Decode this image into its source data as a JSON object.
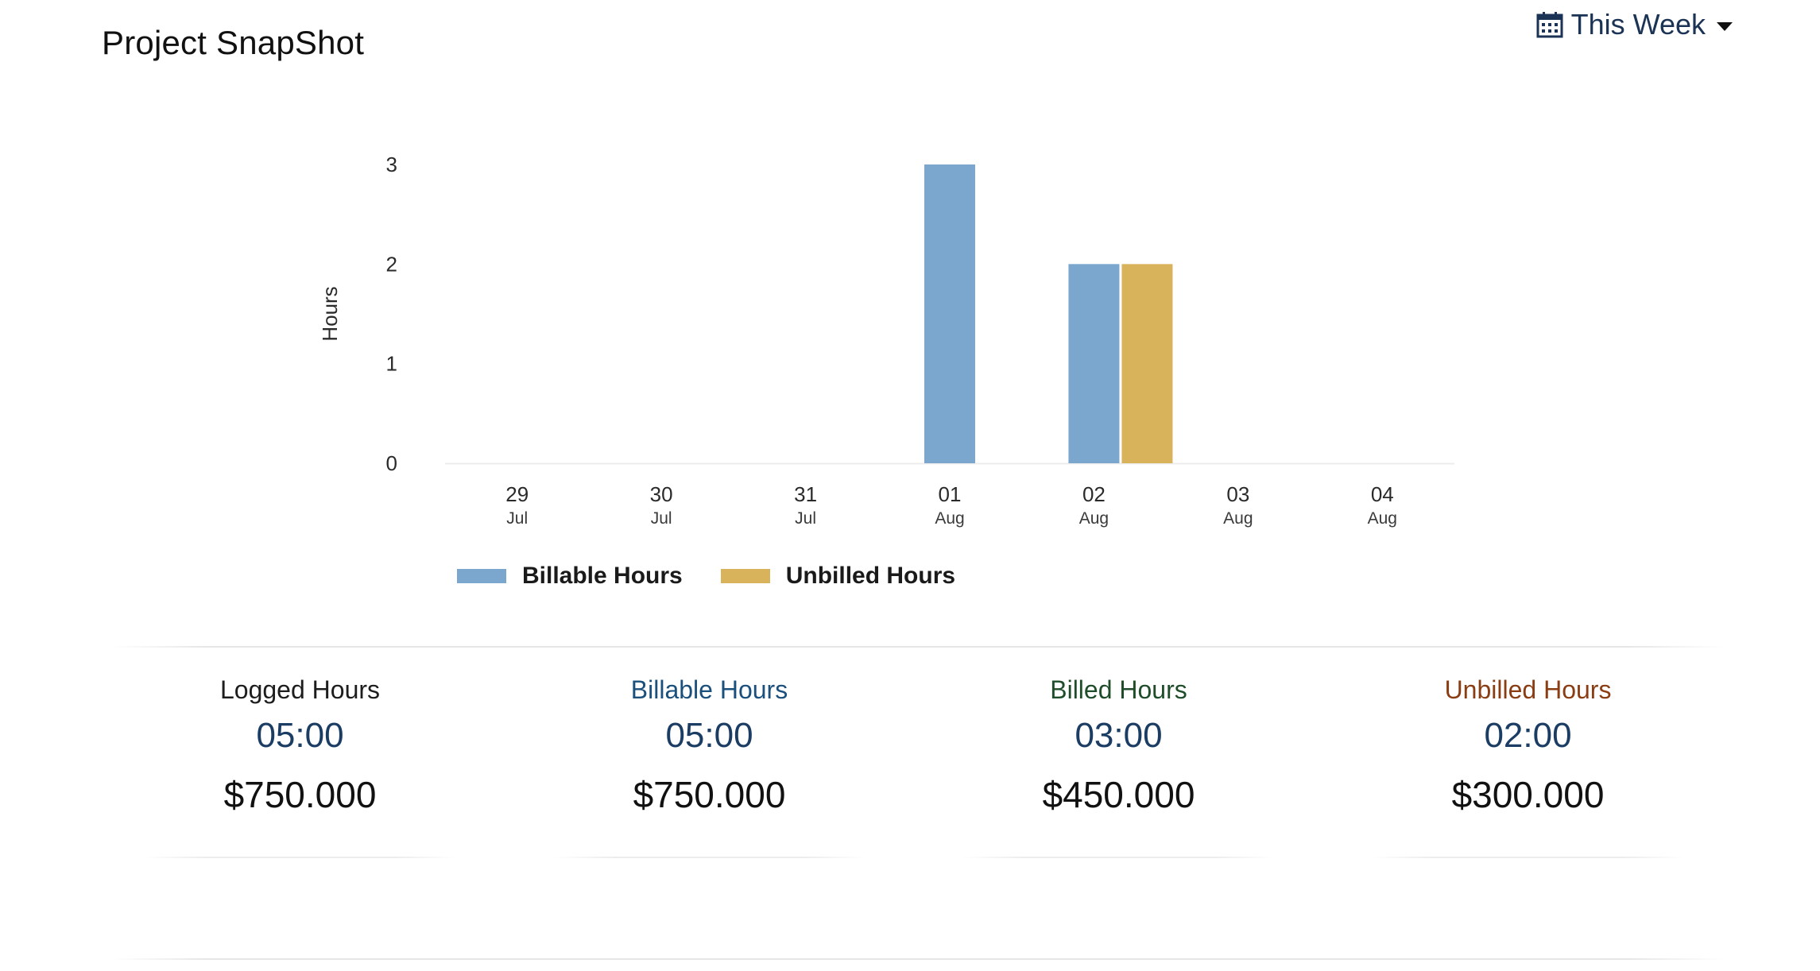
{
  "header": {
    "title": "Project SnapShot",
    "period_label": "This Week"
  },
  "colors": {
    "billable": "#7ba7cf",
    "unbilled": "#d9b35c",
    "billable_text": "#1b4f7c",
    "billed_text": "#1f4d2a",
    "unbilled_text": "#8a3d12"
  },
  "chart_data": {
    "type": "bar",
    "categories": [
      {
        "day": "29",
        "month": "Jul"
      },
      {
        "day": "30",
        "month": "Jul"
      },
      {
        "day": "31",
        "month": "Jul"
      },
      {
        "day": "01",
        "month": "Aug"
      },
      {
        "day": "02",
        "month": "Aug"
      },
      {
        "day": "03",
        "month": "Aug"
      },
      {
        "day": "04",
        "month": "Aug"
      }
    ],
    "series": [
      {
        "name": "Billable Hours",
        "values": [
          0,
          0,
          0,
          3,
          2,
          0,
          0
        ]
      },
      {
        "name": "Unbilled Hours",
        "values": [
          0,
          0,
          0,
          0,
          2,
          0,
          0
        ]
      }
    ],
    "ylabel": "Hours",
    "ylim": [
      0,
      3
    ],
    "yticks": [
      "0",
      "1",
      "2",
      "3"
    ],
    "grid": false,
    "legend_position": "bottom-left"
  },
  "stats": [
    {
      "label": "Logged Hours",
      "time": "05:00",
      "amount": "$750.000"
    },
    {
      "label": "Billable Hours",
      "time": "05:00",
      "amount": "$750.000"
    },
    {
      "label": "Billed Hours",
      "time": "03:00",
      "amount": "$450.000"
    },
    {
      "label": "Unbilled Hours",
      "time": "02:00",
      "amount": "$300.000"
    }
  ]
}
